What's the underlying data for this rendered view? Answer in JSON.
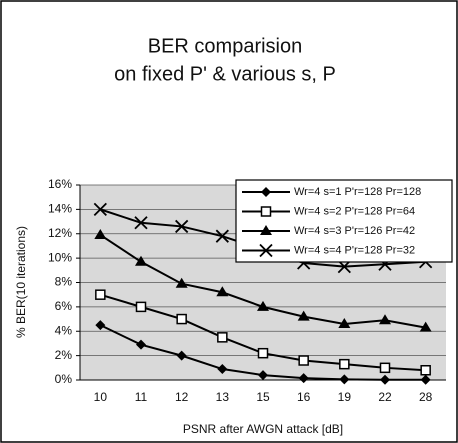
{
  "chart_data": {
    "type": "line",
    "title": [
      "BER comparision",
      "on fixed P' & various s, P"
    ],
    "x_label": "PSNR after AWGN attack [dB]",
    "y_label": "% BER(10 iterations)",
    "categories": [
      "10",
      "11",
      "12",
      "13",
      "15",
      "16",
      "19",
      "22",
      "28"
    ],
    "ylim": [
      0,
      16
    ],
    "yticks": [
      {
        "value": 0,
        "label": "0%"
      },
      {
        "value": 2,
        "label": "2%"
      },
      {
        "value": 4,
        "label": "4%"
      },
      {
        "value": 6,
        "label": "6%"
      },
      {
        "value": 8,
        "label": "8%"
      },
      {
        "value": 10,
        "label": "10%"
      },
      {
        "value": 12,
        "label": "12%"
      },
      {
        "value": 14,
        "label": "14%"
      },
      {
        "value": 16,
        "label": "16%"
      }
    ],
    "grid": true,
    "legend": "upper right",
    "series": [
      {
        "name": "Wr=4 s=1 P'r=128 Pr=128",
        "color": "#000000",
        "marker": "diamond",
        "values": [
          4.5,
          2.9,
          2.0,
          0.9,
          0.4,
          0.15,
          0.05,
          0.02,
          0.02
        ]
      },
      {
        "name": "Wr=4 s=2 P'r=128 Pr=64",
        "color": "#000000",
        "marker": "square-open",
        "values": [
          7.0,
          6.0,
          5.0,
          3.5,
          2.2,
          1.6,
          1.3,
          1.0,
          0.8
        ]
      },
      {
        "name": "Wr=4 s=3 P'r=126 Pr=42",
        "color": "#000000",
        "marker": "triangle",
        "values": [
          11.9,
          9.7,
          7.9,
          7.2,
          6.0,
          5.2,
          4.6,
          4.9,
          4.3
        ]
      },
      {
        "name": "Wr=4 s=4 P'r=128 Pr=32",
        "color": "#000000",
        "marker": "x",
        "values": [
          14.0,
          12.9,
          12.6,
          11.8,
          10.7,
          9.6,
          9.3,
          9.5,
          9.7
        ]
      }
    ]
  }
}
